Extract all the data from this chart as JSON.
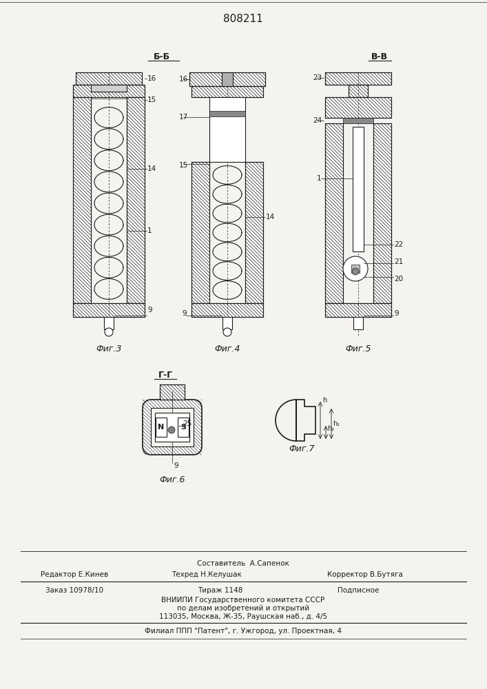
{
  "patent_number": "808211",
  "bg": "#f5f3ef",
  "dc": "#1a1a1a",
  "fig3_label": "Фиг.3",
  "fig4_label": "Фиг.4",
  "fig5_label": "Фиг.5",
  "fig6_label": "Фиг.6",
  "fig7_label": "Фиг.7",
  "section_bb": "Б-Б",
  "section_vv": "В-В",
  "section_gg": "Г-Г",
  "footer_составитель": "Составитель  А.Сапенок",
  "footer_редактор": "Редактор Е.Кинев",
  "footer_техред": "Техред Н.Келушак",
  "footer_корректор": "Корректор В.Бутяга",
  "footer_заказ": "Заказ 10978/10",
  "footer_тираж": "Тираж 1148",
  "footer_подписное": "Подписное",
  "footer_вниипи": "ВНИИПИ Государственного комитета СССР",
  "footer_делам": "по делам изобретений и открытий",
  "footer_адрес": "113035, Москва, Ж-35, Раушская наб., д. 4/5",
  "footer_филиал": "Филиал ППП \"Патент\", г. Ужгород, ул. Проектная, 4"
}
